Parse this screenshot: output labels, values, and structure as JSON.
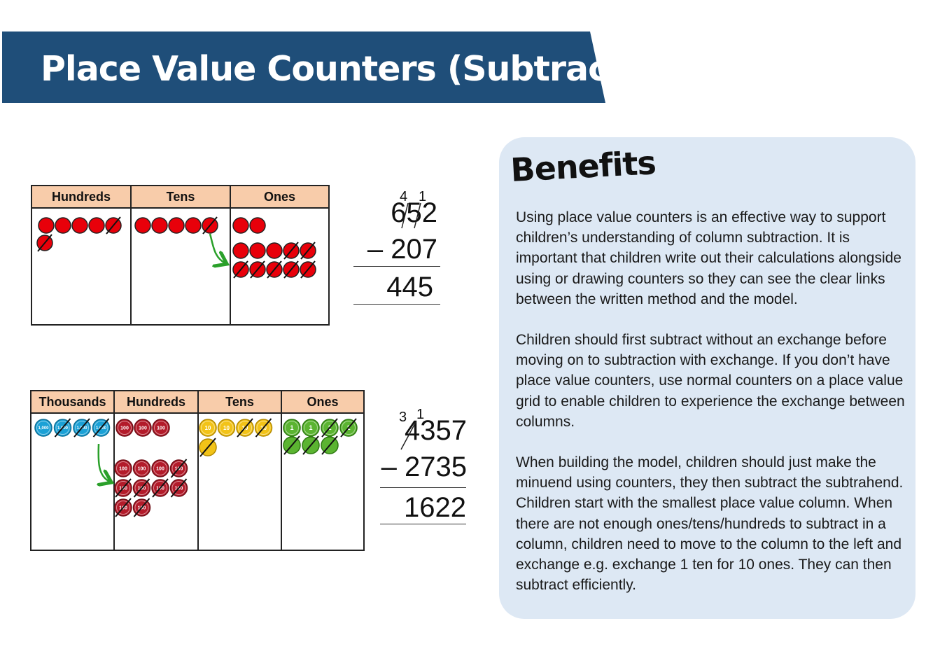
{
  "banner": {
    "title": "Place Value Counters (Subtraction)",
    "color": "#1f4e79"
  },
  "grid1": {
    "headers": [
      "Hundreds",
      "Tens",
      "Ones"
    ],
    "header_color": "#f8ccaa",
    "counter_color": "#e8000a"
  },
  "grid2": {
    "headers": [
      "Thousands",
      "Hundreds",
      "Tens",
      "Ones"
    ],
    "counter_labels": {
      "thousands": "1,000",
      "hundreds": "100",
      "tens": "10",
      "ones": "1"
    },
    "colors": {
      "thousands": "#1ba1d6",
      "hundreds": "#b31b2a",
      "tens": "#f2c318",
      "ones": "#5bb431"
    }
  },
  "calc1": {
    "carry_left": "4",
    "carry_right": "1",
    "minuend": "652",
    "subtrahend": "– 207",
    "result": "445"
  },
  "calc2": {
    "carry_left": "3",
    "carry_right": "1",
    "minuend": "4357",
    "subtrahend": "– 2735",
    "result": "1622"
  },
  "benefits": {
    "title": "Benefits",
    "paragraphs": [
      "Using place value counters is an effective way to support children’s understanding of column subtraction. It is important that children write out their calculations alongside using or drawing counters so they can see the clear links between the written method and the model.",
      "Children should first subtract without an exchange before moving on to subtraction with exchange. If you don’t have place value counters, use normal counters on a place value grid to enable children to experience the exchange between columns.",
      "When building the model, children should just make the minuend using counters, they then subtract the subtrahend. Children start with the smallest place value column. When there are not enough ones/tens/hundreds to subtract in a column, children need to move to the column to the left and exchange e.g. exchange 1 ten for 10 ones. They can then subtract efficiently."
    ]
  }
}
